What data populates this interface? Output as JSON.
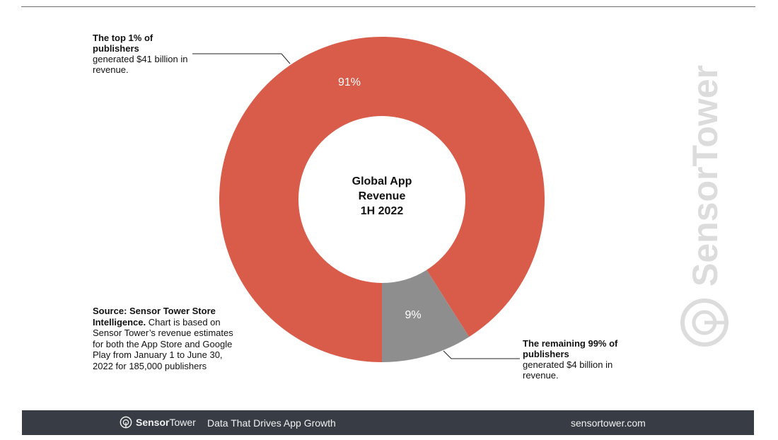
{
  "chart_data": {
    "type": "pie",
    "title": "Global App Revenue 1H 2022",
    "title_lines": [
      "Global App",
      "Revenue",
      "1H 2022"
    ],
    "categories": [
      "The top 1% of publishers",
      "The remaining 99% of publishers"
    ],
    "values": [
      91,
      9
    ],
    "labels": [
      "91%",
      "9%"
    ],
    "colors": [
      "#d95c4a",
      "#8e8e8e"
    ],
    "annotations": {
      "top": {
        "bold": "The top 1% of publishers",
        "text": "generated $41 billion in revenue."
      },
      "bottom": {
        "bold": "The remaining 99% of publishers",
        "text": "generated $4 billion in revenue."
      }
    }
  },
  "source": {
    "bold": "Source: Sensor Tower Store Intelligence.",
    "text": " Chart is based on Sensor Tower’s revenue estimates for both the App Store and Google Play from January 1 to June 30, 2022 for 185,000 publishers"
  },
  "watermark": {
    "text": "SensorTower"
  },
  "footer": {
    "brand_strong": "Sensor",
    "brand_light": "Tower",
    "tagline": "Data That Drives App Growth",
    "url": "sensortower.com",
    "bg": "#383d45"
  }
}
